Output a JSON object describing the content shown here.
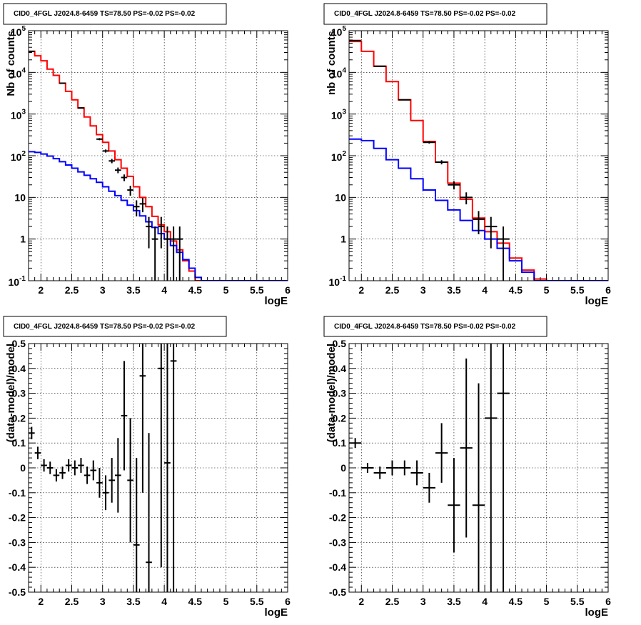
{
  "chart_data": [
    {
      "type": "line",
      "panel": "top-left",
      "title": "CID0_4FGL J2024.8-6459 TS=78.50 PS=-0.02 PS=-0.02",
      "xlabel": "logE",
      "ylabel": "Nb of counts",
      "xlim": [
        1.8,
        6.0
      ],
      "ylim": [
        0.1,
        100000
      ],
      "yscale": "log",
      "grid": true,
      "x_ticks": [
        "2",
        "2.5",
        "3",
        "3.5",
        "4",
        "4.5",
        "5",
        "5.5",
        "6"
      ],
      "y_ticks": [
        "10^-1",
        "1",
        "10",
        "10^2",
        "10^3",
        "10^4",
        "10^5"
      ],
      "bin_edges": [
        1.8,
        1.9,
        2.0,
        2.1,
        2.2,
        2.3,
        2.4,
        2.5,
        2.6,
        2.7,
        2.8,
        2.9,
        3.0,
        3.1,
        3.2,
        3.3,
        3.4,
        3.5,
        3.6,
        3.7,
        3.8,
        3.9,
        4.0,
        4.1,
        4.2,
        4.3,
        4.4,
        4.5,
        4.6,
        4.7,
        4.8,
        4.9,
        5.0,
        5.1,
        5.2,
        5.3,
        5.4,
        5.5,
        5.6,
        5.7,
        5.8,
        5.9,
        6.0
      ],
      "series": [
        {
          "color": "#ff0000",
          "values": [
            32000,
            25000,
            19000,
            12000,
            8500,
            5500,
            3500,
            2200,
            1400,
            850,
            520,
            320,
            210,
            130,
            80,
            50,
            32,
            18,
            10,
            6,
            3.5,
            2.2,
            1.5,
            0.9,
            0.55,
            0.3,
            0.17,
            0.1,
            0.1,
            0.1,
            0.1,
            0.1,
            0.1,
            0.1,
            0.1,
            0.1,
            0.1,
            0.1,
            0.1,
            0.1,
            0.1,
            0.1
          ]
        },
        {
          "color": "#0000ff",
          "values": [
            125,
            120,
            110,
            98,
            85,
            72,
            60,
            50,
            41,
            34,
            28,
            23,
            18,
            14,
            11,
            8.5,
            6.5,
            4.8,
            3.6,
            2.6,
            1.9,
            1.35,
            1.0,
            0.7,
            0.48,
            0.32,
            0.2,
            0.12,
            0.1,
            0.1,
            0.1,
            0.1,
            0.1,
            0.1,
            0.1,
            0.1,
            0.1,
            0.1,
            0.1,
            0.1,
            0.1,
            0.1
          ]
        }
      ],
      "data_points": [
        {
          "x": 1.85,
          "y": 32000,
          "lo": 31800,
          "hi": 32200
        },
        {
          "x": 2.35,
          "y": 5500,
          "lo": 5420,
          "hi": 5580
        },
        {
          "x": 2.65,
          "y": 1400,
          "lo": 1360,
          "hi": 1440
        },
        {
          "x": 2.95,
          "y": 250,
          "lo": 235,
          "hi": 265
        },
        {
          "x": 3.05,
          "y": 130,
          "lo": 119,
          "hi": 141
        },
        {
          "x": 3.15,
          "y": 75,
          "lo": 66,
          "hi": 84
        },
        {
          "x": 3.25,
          "y": 45,
          "lo": 38,
          "hi": 52
        },
        {
          "x": 3.35,
          "y": 30,
          "lo": 24.5,
          "hi": 35.5
        },
        {
          "x": 3.45,
          "y": 15,
          "lo": 11,
          "hi": 19
        },
        {
          "x": 3.55,
          "y": 6,
          "lo": 3.5,
          "hi": 8.5
        },
        {
          "x": 3.65,
          "y": 7,
          "lo": 4.4,
          "hi": 9.6
        },
        {
          "x": 3.75,
          "y": 2,
          "lo": 0.6,
          "hi": 3.4
        },
        {
          "x": 3.85,
          "y": 1,
          "lo": 0.1,
          "hi": 2.0
        },
        {
          "x": 3.95,
          "y": 2,
          "lo": 0.6,
          "hi": 3.4
        },
        {
          "x": 4.05,
          "y": 1,
          "lo": 0.1,
          "hi": 2.0
        },
        {
          "x": 4.15,
          "y": 1,
          "lo": 0.1,
          "hi": 2.0
        },
        {
          "x": 4.25,
          "y": 1,
          "lo": 0.1,
          "hi": 2.0
        }
      ]
    },
    {
      "type": "line",
      "panel": "top-right",
      "title": "CID0_4FGL J2024.8-6459 TS=78.50 PS=-0.02 PS=-0.02",
      "xlabel": "logE",
      "ylabel": "nb of counts",
      "xlim": [
        1.8,
        6.0
      ],
      "ylim": [
        0.1,
        100000
      ],
      "yscale": "log",
      "grid": true,
      "x_ticks": [
        "2",
        "2.5",
        "3",
        "3.5",
        "4",
        "4.5",
        "5",
        "5.5",
        "6"
      ],
      "y_ticks": [
        "10^-1",
        "1",
        "10",
        "10^2",
        "10^3",
        "10^4",
        "10^5"
      ],
      "bin_edges": [
        1.8,
        2.0,
        2.2,
        2.4,
        2.6,
        2.8,
        3.0,
        3.2,
        3.4,
        3.6,
        3.8,
        4.0,
        4.2,
        4.4,
        4.6,
        4.8,
        5.0,
        5.2,
        5.4,
        5.6,
        5.8,
        6.0
      ],
      "series": [
        {
          "color": "#ff0000",
          "values": [
            55000,
            32000,
            14000,
            6000,
            2200,
            700,
            220,
            70,
            22,
            9,
            3.2,
            1.5,
            0.8,
            0.35,
            0.18,
            0.11,
            0.1,
            0.1,
            0.1,
            0.1,
            0.1
          ]
        },
        {
          "color": "#0000ff",
          "values": [
            250,
            230,
            150,
            80,
            50,
            28,
            15,
            8.5,
            5,
            2.8,
            1.6,
            1.0,
            0.6,
            0.3,
            0.16,
            0.1,
            0.1,
            0.1,
            0.1,
            0.1,
            0.1
          ]
        }
      ],
      "data_points": [
        {
          "x": 1.9,
          "y": 58000,
          "lo": 57600,
          "hi": 58400
        },
        {
          "x": 2.3,
          "y": 14000,
          "lo": 13800,
          "hi": 14200
        },
        {
          "x": 2.7,
          "y": 2200,
          "lo": 2150,
          "hi": 2250
        },
        {
          "x": 3.1,
          "y": 210,
          "lo": 196,
          "hi": 224
        },
        {
          "x": 3.3,
          "y": 70,
          "lo": 62,
          "hi": 78
        },
        {
          "x": 3.5,
          "y": 20,
          "lo": 15.5,
          "hi": 24.5
        },
        {
          "x": 3.7,
          "y": 10,
          "lo": 6.8,
          "hi": 13.2
        },
        {
          "x": 3.9,
          "y": 3,
          "lo": 1.3,
          "hi": 4.7
        },
        {
          "x": 4.1,
          "y": 2,
          "lo": 0.6,
          "hi": 3.4
        },
        {
          "x": 4.3,
          "y": 1,
          "lo": 0.1,
          "hi": 2.0
        }
      ]
    },
    {
      "type": "scatter",
      "panel": "bottom-left",
      "title": "CID0_4FGL J2024.8-6459 TS=78.50 PS=-0.02 PS=-0.02",
      "xlabel": "logE",
      "ylabel": "(data-model)/model",
      "xlim": [
        1.8,
        6.0
      ],
      "ylim": [
        -0.5,
        0.5
      ],
      "yscale": "linear",
      "grid": true,
      "x_ticks": [
        "2",
        "2.5",
        "3",
        "3.5",
        "4",
        "4.5",
        "5",
        "5.5",
        "6"
      ],
      "y_ticks": [
        "-0.5",
        "-0.4",
        "-0.3",
        "-0.2",
        "-0.1",
        "0",
        "0.1",
        "0.2",
        "0.3",
        "0.4",
        "0.5"
      ],
      "xerr": 0.05,
      "data_points": [
        {
          "x": 1.85,
          "y": 0.14,
          "lo": 0.115,
          "hi": 0.165
        },
        {
          "x": 1.95,
          "y": 0.06,
          "lo": 0.035,
          "hi": 0.085
        },
        {
          "x": 2.05,
          "y": 0.01,
          "lo": -0.015,
          "hi": 0.035
        },
        {
          "x": 2.15,
          "y": 0.0,
          "lo": -0.025,
          "hi": 0.025
        },
        {
          "x": 2.25,
          "y": -0.03,
          "lo": -0.055,
          "hi": -0.005
        },
        {
          "x": 2.35,
          "y": -0.02,
          "lo": -0.045,
          "hi": 0.005
        },
        {
          "x": 2.45,
          "y": 0.01,
          "lo": -0.015,
          "hi": 0.035
        },
        {
          "x": 2.55,
          "y": 0.0,
          "lo": -0.03,
          "hi": 0.03
        },
        {
          "x": 2.65,
          "y": 0.01,
          "lo": -0.02,
          "hi": 0.04
        },
        {
          "x": 2.75,
          "y": -0.03,
          "lo": -0.065,
          "hi": 0.005
        },
        {
          "x": 2.85,
          "y": -0.01,
          "lo": -0.05,
          "hi": 0.03
        },
        {
          "x": 2.95,
          "y": -0.06,
          "lo": -0.12,
          "hi": 0.0
        },
        {
          "x": 3.05,
          "y": -0.1,
          "lo": -0.17,
          "hi": -0.03
        },
        {
          "x": 3.15,
          "y": -0.05,
          "lo": -0.14,
          "hi": 0.04
        },
        {
          "x": 3.25,
          "y": -0.03,
          "lo": -0.18,
          "hi": 0.12
        },
        {
          "x": 3.35,
          "y": 0.21,
          "lo": -0.01,
          "hi": 0.43
        },
        {
          "x": 3.45,
          "y": -0.05,
          "lo": -0.3,
          "hi": 0.2
        },
        {
          "x": 3.55,
          "y": -0.31,
          "lo": -0.6,
          "hi": 0.04
        },
        {
          "x": 3.65,
          "y": 0.37,
          "lo": -0.1,
          "hi": 0.84
        },
        {
          "x": 3.75,
          "y": -0.38,
          "lo": -0.9,
          "hi": 0.14
        },
        {
          "x": 3.95,
          "y": 0.4,
          "lo": -0.4,
          "hi": 1.2
        },
        {
          "x": 4.05,
          "y": 0.02,
          "lo": -0.9,
          "hi": 0.95
        },
        {
          "x": 4.15,
          "y": 0.43,
          "lo": -0.6,
          "hi": 1.5
        }
      ]
    },
    {
      "type": "scatter",
      "panel": "bottom-right",
      "title": "CID0_4FGL J2024.8-6459 TS=78.50 PS=-0.02 PS=-0.02",
      "xlabel": "logE",
      "ylabel": "(data-model)/model",
      "xlim": [
        1.8,
        6.0
      ],
      "ylim": [
        -0.5,
        0.5
      ],
      "yscale": "linear",
      "grid": true,
      "x_ticks": [
        "2",
        "2.5",
        "3",
        "3.5",
        "4",
        "4.5",
        "5",
        "5.5",
        "6"
      ],
      "y_ticks": [
        "-0.5",
        "-0.4",
        "-0.3",
        "-0.2",
        "-0.1",
        "0",
        "0.1",
        "0.2",
        "0.3",
        "0.4",
        "0.5"
      ],
      "xerr": 0.1,
      "data_points": [
        {
          "x": 1.9,
          "y": 0.1,
          "lo": 0.08,
          "hi": 0.12
        },
        {
          "x": 2.1,
          "y": 0.0,
          "lo": -0.02,
          "hi": 0.02
        },
        {
          "x": 2.3,
          "y": -0.02,
          "lo": -0.045,
          "hi": 0.005
        },
        {
          "x": 2.5,
          "y": 0.0,
          "lo": -0.03,
          "hi": 0.03
        },
        {
          "x": 2.7,
          "y": 0.0,
          "lo": -0.03,
          "hi": 0.03
        },
        {
          "x": 2.9,
          "y": -0.02,
          "lo": -0.07,
          "hi": 0.03
        },
        {
          "x": 3.1,
          "y": -0.08,
          "lo": -0.14,
          "hi": -0.02
        },
        {
          "x": 3.3,
          "y": 0.06,
          "lo": -0.06,
          "hi": 0.18
        },
        {
          "x": 3.5,
          "y": -0.15,
          "lo": -0.34,
          "hi": 0.04
        },
        {
          "x": 3.7,
          "y": 0.08,
          "lo": -0.28,
          "hi": 0.44
        },
        {
          "x": 3.9,
          "y": -0.15,
          "lo": -0.65,
          "hi": 0.34
        },
        {
          "x": 4.1,
          "y": 0.2,
          "lo": -0.8,
          "hi": 1.2
        },
        {
          "x": 4.3,
          "y": 0.3,
          "lo": -0.7,
          "hi": 1.3
        }
      ]
    }
  ]
}
